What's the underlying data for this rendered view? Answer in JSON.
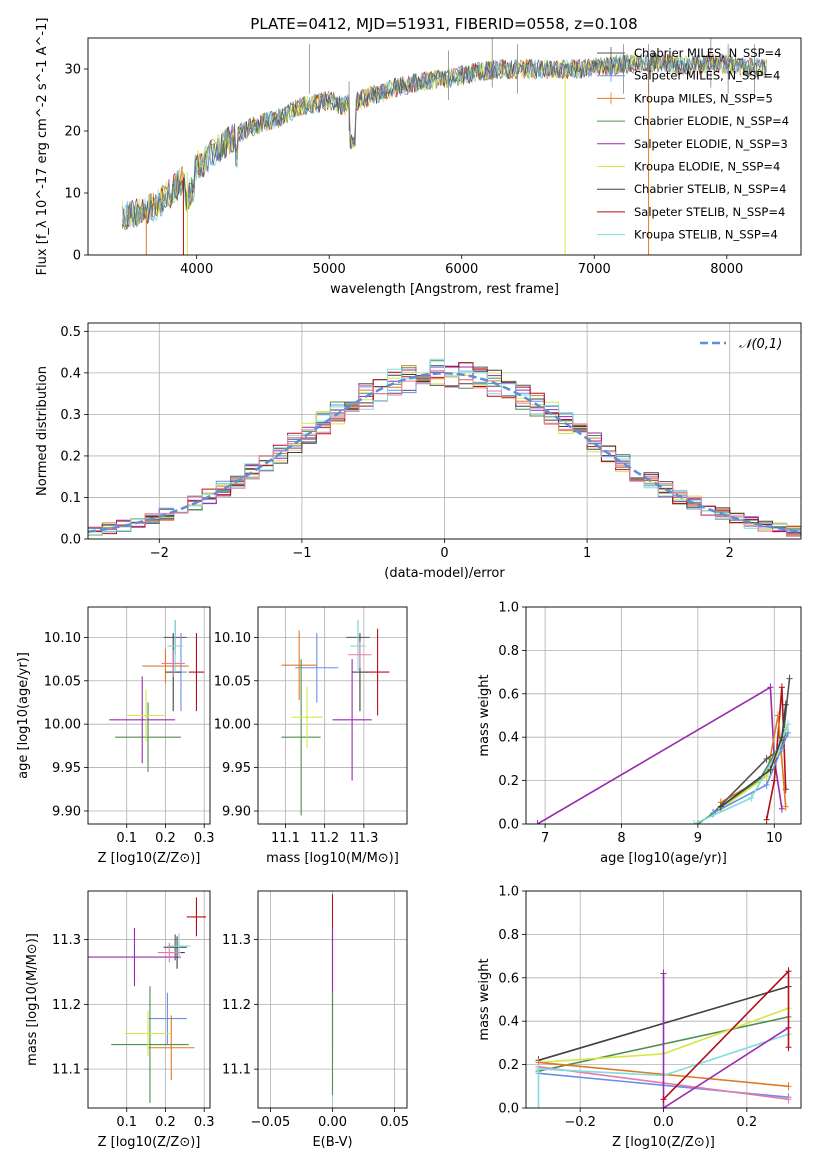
{
  "title": "PLATE=0412, MJD=51931, FIBERID=0558, z=0.108",
  "colors": {
    "chabrier_miles": "#555555",
    "salpeter_miles": "#6a8fe8",
    "kroupa_miles": "#e07b24",
    "chabrier_elodie": "#4f8f4f",
    "salpeter_elodie": "#9a2ab0",
    "kroupa_elodie": "#d4e84a",
    "chabrier_stelib": "#404040",
    "salpeter_stelib": "#b01018",
    "kroupa_stelib": "#80dce0",
    "pink": "#e87aa8",
    "normal_line": "#5b8fd8"
  },
  "chart_data": [
    {
      "id": "spectrum",
      "type": "line",
      "title": "PLATE=0412, MJD=51931, FIBERID=0558, z=0.108",
      "xlabel": "wavelength [Angstrom, rest frame]",
      "ylabel": "Flux [f_λ 10^-17 erg cm^-2 s^-1 A^-1]",
      "xlim": [
        3180,
        8560
      ],
      "ylim": [
        0,
        35
      ],
      "xticks": [
        4000,
        5000,
        6000,
        7000,
        8000
      ],
      "yticks": [
        0,
        10,
        20,
        30
      ],
      "grid": false,
      "legend_position": "right",
      "continuum": [
        [
          3440,
          6.5
        ],
        [
          3600,
          7
        ],
        [
          3700,
          8
        ],
        [
          3850,
          11
        ],
        [
          3950,
          14
        ],
        [
          4050,
          15
        ],
        [
          4150,
          17
        ],
        [
          4300,
          19.5
        ],
        [
          4450,
          21
        ],
        [
          4600,
          22
        ],
        [
          4800,
          24
        ],
        [
          5000,
          25
        ],
        [
          5100,
          24
        ],
        [
          5300,
          25.5
        ],
        [
          5500,
          27
        ],
        [
          5700,
          28
        ],
        [
          5900,
          28.5
        ],
        [
          6100,
          29.5
        ],
        [
          6300,
          30
        ],
        [
          6500,
          30
        ],
        [
          6700,
          30
        ],
        [
          6900,
          30
        ],
        [
          7100,
          30.5
        ],
        [
          7300,
          31
        ],
        [
          7500,
          31
        ],
        [
          7700,
          30.5
        ],
        [
          7900,
          31
        ],
        [
          8100,
          30.5
        ],
        [
          8300,
          30
        ]
      ],
      "series": [
        {
          "name": "Chabrier MILES, N_SSP=4"
        },
        {
          "name": "Salpeter MILES, N_SSP=4"
        },
        {
          "name": "Kroupa MILES, N_SSP=5"
        },
        {
          "name": "Chabrier ELODIE, N_SSP=4"
        },
        {
          "name": "Salpeter ELODIE, N_SSP=3"
        },
        {
          "name": "Kroupa ELODIE, N_SSP=4"
        },
        {
          "name": "Chabrier STELIB, N_SSP=4"
        },
        {
          "name": "Salpeter STELIB, N_SSP=4"
        },
        {
          "name": "Kroupa STELIB, N_SSP=4"
        }
      ]
    },
    {
      "id": "residuals",
      "type": "bar",
      "xlabel": "(data-model)/error",
      "ylabel": "Normed distribution",
      "xlim": [
        -2.5,
        2.5
      ],
      "ylim": [
        0,
        0.52
      ],
      "xticks": [
        -2,
        -1,
        0,
        1,
        2
      ],
      "yticks": [
        0.0,
        0.1,
        0.2,
        0.3,
        0.4,
        0.5
      ],
      "grid": true,
      "legend": "𝒩(0,1)",
      "legend_position": "top-right",
      "bins": 50
    },
    {
      "id": "age_vs_Z",
      "type": "scatter",
      "xlabel": "Z [log10(Z/Z⊙)]",
      "ylabel": "age  [log10(age/yr)]",
      "xlim": [
        0.0,
        0.315
      ],
      "ylim": [
        9.885,
        10.135
      ],
      "xticks": [
        0.1,
        0.2,
        0.3
      ],
      "yticks": [
        9.9,
        9.95,
        10.0,
        10.05,
        10.1
      ],
      "grid": true,
      "points": [
        {
          "color": "chabrier_miles",
          "x": 0.225,
          "y": 10.1,
          "xerr": 0.03,
          "yerr": 0.02
        },
        {
          "color": "salpeter_miles",
          "x": 0.24,
          "y": 10.06,
          "xerr": 0.015,
          "yerr": 0.045
        },
        {
          "color": "kroupa_miles",
          "x": 0.2,
          "y": 10.067,
          "xerr": 0.06,
          "yerr": 0.02
        },
        {
          "color": "chabrier_elodie",
          "x": 0.155,
          "y": 9.985,
          "xerr": 0.085,
          "yerr": 0.04
        },
        {
          "color": "salpeter_elodie",
          "x": 0.14,
          "y": 10.005,
          "xerr": 0.085,
          "yerr": 0.05
        },
        {
          "color": "kroupa_elodie",
          "x": 0.15,
          "y": 10.01,
          "xerr": 0.05,
          "yerr": 0.03
        },
        {
          "color": "chabrier_stelib",
          "x": 0.22,
          "y": 10.06,
          "xerr": 0.02,
          "yerr": 0.045
        },
        {
          "color": "salpeter_stelib",
          "x": 0.28,
          "y": 10.06,
          "xerr": 0.02,
          "yerr": 0.045
        },
        {
          "color": "kroupa_stelib",
          "x": 0.225,
          "y": 10.09,
          "xerr": 0.02,
          "yerr": 0.03
        },
        {
          "color": "pink",
          "x": 0.22,
          "y": 10.07,
          "xerr": 0.03,
          "yerr": 0.015
        }
      ]
    },
    {
      "id": "age_vs_mass",
      "type": "scatter",
      "xlabel": "mass [log10(M/M⊙)]",
      "ylabel": "",
      "xlim": [
        11.03,
        11.41
      ],
      "ylim": [
        9.885,
        10.135
      ],
      "xticks": [
        11.1,
        11.2,
        11.3
      ],
      "yticks": [
        9.9,
        9.95,
        10.0,
        10.05,
        10.1
      ],
      "grid": true,
      "points": [
        {
          "color": "chabrier_miles",
          "x": 11.285,
          "y": 10.1,
          "xerr": 0.03,
          "yerr": 0.02
        },
        {
          "color": "salpeter_miles",
          "x": 11.18,
          "y": 10.065,
          "xerr": 0.055,
          "yerr": 0.04
        },
        {
          "color": "kroupa_miles",
          "x": 11.135,
          "y": 10.068,
          "xerr": 0.045,
          "yerr": 0.04
        },
        {
          "color": "chabrier_elodie",
          "x": 11.14,
          "y": 9.985,
          "xerr": 0.05,
          "yerr": 0.09
        },
        {
          "color": "salpeter_elodie",
          "x": 11.27,
          "y": 10.005,
          "xerr": 0.05,
          "yerr": 0.07
        },
        {
          "color": "kroupa_elodie",
          "x": 11.155,
          "y": 10.008,
          "xerr": 0.04,
          "yerr": 0.035
        },
        {
          "color": "chabrier_stelib",
          "x": 11.29,
          "y": 10.06,
          "xerr": 0.02,
          "yerr": 0.045
        },
        {
          "color": "salpeter_stelib",
          "x": 11.335,
          "y": 10.06,
          "xerr": 0.03,
          "yerr": 0.05
        },
        {
          "color": "kroupa_stelib",
          "x": 11.285,
          "y": 10.09,
          "xerr": 0.02,
          "yerr": 0.03
        },
        {
          "color": "pink",
          "x": 11.29,
          "y": 10.08,
          "xerr": 0.03,
          "yerr": 0.015
        }
      ]
    },
    {
      "id": "weight_vs_age",
      "type": "line",
      "xlabel": "age  [log10(age/yr)]",
      "ylabel": "mass weight",
      "xlim": [
        6.75,
        10.35
      ],
      "ylim": [
        0,
        1.0
      ],
      "xticks": [
        7,
        8,
        9,
        10
      ],
      "yticks": [
        0.0,
        0.2,
        0.4,
        0.6,
        0.8,
        1.0
      ],
      "grid": true,
      "series": [
        {
          "color": "salpeter_elodie",
          "points": [
            [
              6.9,
              0.0
            ],
            [
              9.95,
              0.63
            ],
            [
              10.0,
              0.3
            ],
            [
              10.1,
              0.07
            ]
          ]
        },
        {
          "color": "salpeter_stelib",
          "points": [
            [
              9.9,
              0.02
            ],
            [
              10.0,
              0.2
            ],
            [
              10.1,
              0.63
            ],
            [
              10.15,
              0.16
            ]
          ]
        },
        {
          "color": "kroupa_miles",
          "points": [
            [
              9.3,
              0.1
            ],
            [
              9.9,
              0.22
            ],
            [
              10.05,
              0.5
            ],
            [
              10.15,
              0.08
            ]
          ]
        },
        {
          "color": "chabrier_miles",
          "points": [
            [
              9.2,
              0.05
            ],
            [
              9.9,
              0.3
            ],
            [
              10.1,
              0.35
            ],
            [
              10.2,
              0.67
            ]
          ]
        },
        {
          "color": "chabrier_elodie",
          "points": [
            [
              9.0,
              0.0
            ],
            [
              9.8,
              0.2
            ],
            [
              10.1,
              0.38
            ],
            [
              10.15,
              0.42
            ]
          ]
        },
        {
          "color": "kroupa_elodie",
          "points": [
            [
              9.3,
              0.07
            ],
            [
              9.9,
              0.22
            ],
            [
              10.05,
              0.33
            ],
            [
              10.15,
              0.44
            ]
          ]
        },
        {
          "color": "salpeter_miles",
          "points": [
            [
              9.2,
              0.05
            ],
            [
              9.9,
              0.18
            ],
            [
              10.1,
              0.35
            ],
            [
              10.18,
              0.42
            ]
          ]
        },
        {
          "color": "kroupa_stelib",
          "points": [
            [
              8.95,
              0.0
            ],
            [
              9.7,
              0.12
            ],
            [
              10.05,
              0.34
            ],
            [
              10.18,
              0.46
            ]
          ]
        },
        {
          "color": "chabrier_stelib",
          "points": [
            [
              9.3,
              0.08
            ],
            [
              9.95,
              0.25
            ],
            [
              10.1,
              0.4
            ],
            [
              10.15,
              0.55
            ]
          ]
        }
      ]
    },
    {
      "id": "mass_vs_Z",
      "type": "scatter",
      "xlabel": "Z [log10(Z/Z⊙)]",
      "ylabel": "mass [log10(M/M⊙)]",
      "xlim": [
        0.0,
        0.315
      ],
      "ylim": [
        11.04,
        11.375
      ],
      "xticks": [
        0.1,
        0.2,
        0.3
      ],
      "yticks": [
        11.1,
        11.2,
        11.3
      ],
      "grid": true,
      "points": [
        {
          "color": "chabrier_miles",
          "x": 0.225,
          "y": 11.288,
          "xerr": 0.03,
          "yerr": 0.02
        },
        {
          "color": "salpeter_miles",
          "x": 0.205,
          "y": 11.178,
          "xerr": 0.05,
          "yerr": 0.04
        },
        {
          "color": "kroupa_miles",
          "x": 0.215,
          "y": 11.133,
          "xerr": 0.06,
          "yerr": 0.05
        },
        {
          "color": "chabrier_elodie",
          "x": 0.16,
          "y": 11.138,
          "xerr": 0.1,
          "yerr": 0.09
        },
        {
          "color": "salpeter_elodie",
          "x": 0.12,
          "y": 11.273,
          "xerr": 0.12,
          "yerr": 0.045
        },
        {
          "color": "kroupa_elodie",
          "x": 0.155,
          "y": 11.155,
          "xerr": 0.06,
          "yerr": 0.035
        },
        {
          "color": "chabrier_stelib",
          "x": 0.23,
          "y": 11.28,
          "xerr": 0.02,
          "yerr": 0.025
        },
        {
          "color": "salpeter_stelib",
          "x": 0.28,
          "y": 11.335,
          "xerr": 0.025,
          "yerr": 0.03
        },
        {
          "color": "kroupa_stelib",
          "x": 0.235,
          "y": 11.29,
          "xerr": 0.03,
          "yerr": 0.02
        },
        {
          "color": "pink",
          "x": 0.21,
          "y": 11.28,
          "xerr": 0.03,
          "yerr": 0.015
        }
      ]
    },
    {
      "id": "mass_vs_ebv",
      "type": "scatter",
      "xlabel": "E(B-V)",
      "ylabel": "",
      "xlim": [
        -0.06,
        0.06
      ],
      "ylim": [
        11.04,
        11.375
      ],
      "xticks": [
        -0.05,
        0.0,
        0.05
      ],
      "yticks": [
        11.1,
        11.2,
        11.3
      ],
      "grid": true,
      "points": [
        {
          "color": "salpeter_stelib",
          "x": 0.0,
          "y": 11.25,
          "xerr": 0.0,
          "yerr": 0.12
        },
        {
          "color": "salpeter_elodie",
          "x": 0.0,
          "y": 11.27,
          "xerr": 0.0,
          "yerr": 0.05
        },
        {
          "color": "kroupa_elodie",
          "x": 0.0,
          "y": 11.15,
          "xerr": 0.0,
          "yerr": 0.04
        },
        {
          "color": "chabrier_elodie",
          "x": 0.0,
          "y": 11.14,
          "xerr": 0.0,
          "yerr": 0.08
        }
      ]
    },
    {
      "id": "weight_vs_Z",
      "type": "line",
      "xlabel": "Z [log10(Z/Z⊙)]",
      "ylabel": "mass weight",
      "xlim": [
        -0.33,
        0.33
      ],
      "ylim": [
        0,
        1.0
      ],
      "xticks": [
        -0.2,
        0.0,
        0.2
      ],
      "yticks": [
        0.0,
        0.2,
        0.4,
        0.6,
        0.8,
        1.0
      ],
      "grid": true,
      "series": [
        {
          "color": "chabrier_stelib",
          "points": [
            [
              -0.3,
              0.22
            ],
            [
              0.3,
              0.56
            ]
          ]
        },
        {
          "color": "chabrier_elodie",
          "points": [
            [
              -0.3,
              0.17
            ],
            [
              0.3,
              0.42
            ]
          ]
        },
        {
          "color": "kroupa_elodie",
          "points": [
            [
              -0.3,
              0.21
            ],
            [
              0.0,
              0.25
            ],
            [
              0.3,
              0.46
            ]
          ]
        },
        {
          "color": "kroupa_miles",
          "points": [
            [
              -0.3,
              0.21
            ],
            [
              0.3,
              0.1
            ]
          ]
        },
        {
          "color": "salpeter_miles",
          "points": [
            [
              -0.3,
              0.16
            ],
            [
              0.3,
              0.05
            ]
          ]
        },
        {
          "color": "pink",
          "points": [
            [
              -0.3,
              0.19
            ],
            [
              0.3,
              0.04
            ]
          ]
        },
        {
          "color": "kroupa_stelib",
          "points": [
            [
              -0.3,
              0.0
            ],
            [
              -0.3,
              0.18
            ],
            [
              0.0,
              0.15
            ],
            [
              0.3,
              0.34
            ]
          ]
        },
        {
          "color": "salpeter_elodie",
          "points": [
            [
              0.0,
              0.62
            ],
            [
              0.0,
              0.0
            ],
            [
              0.3,
              0.37
            ]
          ]
        },
        {
          "color": "salpeter_stelib",
          "points": [
            [
              0.0,
              0.04
            ],
            [
              0.3,
              0.63
            ],
            [
              0.3,
              0.28
            ]
          ]
        }
      ]
    }
  ]
}
